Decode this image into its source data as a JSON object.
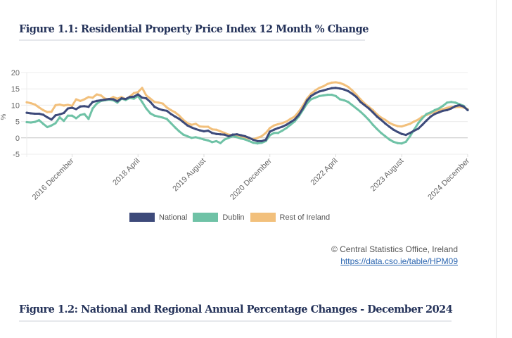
{
  "figure1": {
    "title": "Figure 1.1: Residential Property Price Index 12 Month % Change"
  },
  "figure2": {
    "title": "Figure 1.2: National and Regional Annual Percentage Changes - December 2024"
  },
  "credit": {
    "text": "© Central Statistics Office, Ireland",
    "link": "https://data.cso.ie/table/HPM09"
  },
  "chart_data": {
    "type": "line",
    "title": "",
    "xlabel": "",
    "ylabel": "%",
    "ylim": [
      -5,
      20
    ],
    "yticks": [
      20,
      15,
      10,
      5,
      0,
      -5
    ],
    "grid": true,
    "legend_position": "bottom",
    "x_start": "2016 January",
    "x_end": "2024 December",
    "x_frequency": "monthly",
    "xtick_labels": [
      {
        "label": "2016 December",
        "index": 11
      },
      {
        "label": "2018 April",
        "index": 27
      },
      {
        "label": "2019 August",
        "index": 43
      },
      {
        "label": "2020 December",
        "index": 59
      },
      {
        "label": "2022 April",
        "index": 75
      },
      {
        "label": "2023 August",
        "index": 91
      },
      {
        "label": "2024 December",
        "index": 107
      }
    ],
    "series": [
      {
        "name": "Rest of Ireland",
        "color": "#f2c07c",
        "values": [
          10.9,
          10.6,
          10.2,
          9.3,
          8.5,
          7.9,
          8.0,
          10.0,
          10.2,
          9.9,
          10.1,
          9.8,
          11.8,
          11.3,
          11.8,
          12.5,
          12.3,
          13.3,
          13.0,
          12.0,
          11.8,
          12.5,
          12.0,
          12.5,
          11.8,
          12.6,
          13.7,
          14.0,
          15.3,
          13.0,
          12.0,
          11.0,
          10.8,
          10.5,
          9.3,
          8.5,
          7.8,
          6.8,
          5.5,
          4.5,
          4.0,
          4.3,
          3.5,
          3.4,
          3.4,
          2.6,
          2.5,
          2.0,
          1.5,
          1.0,
          0.8,
          0.5,
          0.3,
          0.0,
          -0.2,
          -0.4,
          0.0,
          0.5,
          1.5,
          3.0,
          3.8,
          4.2,
          4.5,
          5.0,
          5.8,
          6.5,
          8.0,
          9.8,
          12.0,
          13.5,
          14.5,
          15.3,
          15.8,
          16.5,
          16.9,
          17.0,
          16.8,
          16.3,
          15.6,
          14.5,
          13.2,
          11.8,
          10.5,
          9.5,
          8.5,
          7.2,
          6.2,
          5.5,
          4.6,
          4.0,
          3.6,
          3.5,
          3.9,
          4.3,
          5.0,
          5.6,
          6.5,
          7.0,
          7.5,
          8.0,
          8.5,
          8.8,
          9.2,
          9.5,
          9.4,
          9.5,
          9.3,
          8.8
        ]
      },
      {
        "name": "Dublin",
        "color": "#6fc2a6",
        "values": [
          4.8,
          4.7,
          4.9,
          5.4,
          4.3,
          3.3,
          3.8,
          4.5,
          6.3,
          5.2,
          6.8,
          6.8,
          6.0,
          7.0,
          7.3,
          5.8,
          9.0,
          10.5,
          11.3,
          11.5,
          11.7,
          11.5,
          10.8,
          12.0,
          11.6,
          12.2,
          12.0,
          12.8,
          11.0,
          9.0,
          7.5,
          6.8,
          6.5,
          6.2,
          5.8,
          4.5,
          3.2,
          2.0,
          1.0,
          0.5,
          0.0,
          0.2,
          -0.1,
          -0.5,
          -0.8,
          -1.3,
          -1.0,
          -1.6,
          -0.5,
          0.0,
          0.5,
          0.2,
          -0.2,
          -0.5,
          -1.0,
          -1.5,
          -1.7,
          -1.5,
          -1.0,
          0.8,
          1.5,
          1.5,
          2.2,
          3.0,
          4.0,
          5.0,
          6.5,
          8.5,
          10.5,
          11.8,
          12.3,
          12.8,
          13.0,
          13.2,
          13.2,
          12.8,
          11.8,
          11.5,
          11.0,
          10.0,
          9.0,
          8.0,
          6.8,
          5.5,
          4.0,
          2.7,
          1.5,
          0.5,
          -0.5,
          -1.2,
          -1.6,
          -1.7,
          -1.2,
          0.5,
          2.5,
          4.5,
          6.0,
          7.3,
          7.8,
          8.5,
          9.0,
          9.8,
          10.8,
          11.0,
          10.8,
          10.3,
          9.8,
          8.5
        ]
      },
      {
        "name": "National",
        "color": "#3d4a7a",
        "values": [
          7.7,
          7.5,
          7.4,
          7.4,
          7.1,
          6.3,
          5.6,
          6.9,
          7.2,
          7.6,
          9.0,
          9.2,
          8.8,
          9.6,
          9.7,
          9.5,
          11.0,
          11.3,
          11.5,
          11.7,
          11.9,
          11.8,
          11.2,
          12.1,
          11.9,
          12.5,
          12.6,
          13.3,
          12.3,
          12.1,
          11.0,
          9.5,
          8.9,
          8.5,
          8.3,
          7.3,
          6.5,
          5.8,
          4.8,
          3.8,
          3.2,
          2.7,
          2.3,
          2.0,
          2.2,
          1.5,
          1.2,
          1.1,
          1.0,
          0.5,
          1.0,
          1.1,
          0.8,
          0.5,
          0.0,
          -0.6,
          -1.0,
          -1.0,
          -0.6,
          1.9,
          2.5,
          3.0,
          3.4,
          4.0,
          4.8,
          5.6,
          7.0,
          9.0,
          11.4,
          12.8,
          13.6,
          14.2,
          14.5,
          14.9,
          15.2,
          15.3,
          15.1,
          14.8,
          14.3,
          13.5,
          12.5,
          11.0,
          10.0,
          9.0,
          7.8,
          6.5,
          5.5,
          4.4,
          3.4,
          2.5,
          1.8,
          1.2,
          0.9,
          1.5,
          2.2,
          2.8,
          4.0,
          5.3,
          6.5,
          7.3,
          7.8,
          8.3,
          8.5,
          9.0,
          9.7,
          10.0,
          9.6,
          8.5
        ]
      }
    ],
    "legend": [
      {
        "name": "National",
        "color": "#3d4a7a"
      },
      {
        "name": "Dublin",
        "color": "#6fc2a6"
      },
      {
        "name": "Rest of Ireland",
        "color": "#f2c07c"
      }
    ]
  }
}
